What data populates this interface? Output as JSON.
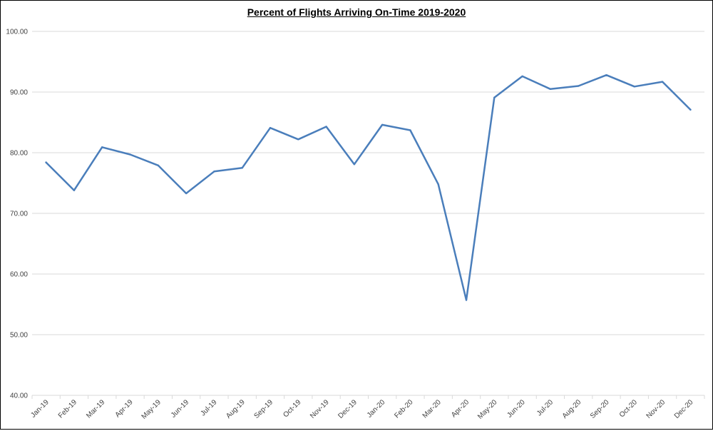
{
  "chart_data": {
    "type": "line",
    "title": "Percent of Flights Arriving On-Time 2019-2020",
    "xlabel": "",
    "ylabel": "",
    "ylim": [
      40,
      100
    ],
    "yticks": [
      "40.00",
      "50.00",
      "60.00",
      "70.00",
      "80.00",
      "90.00",
      "100.00"
    ],
    "grid": true,
    "legend": "none",
    "line_color": "#4A7EBB",
    "categories": [
      "Jan-19",
      "Feb-19",
      "Mar-19",
      "Apr-19",
      "May-19",
      "Jun-19",
      "Jul-19",
      "Aug-19",
      "Sep-19",
      "Oct-19",
      "Nov-19",
      "Dec-19",
      "Jan-20",
      "Feb-20",
      "Mar-20",
      "Apr-20",
      "May-20",
      "Jun-20",
      "Jul-20",
      "Aug-20",
      "Sep-20",
      "Oct-20",
      "Nov-20",
      "Dec-20"
    ],
    "series": [
      {
        "values": [
          78.4,
          73.8,
          80.9,
          79.7,
          77.9,
          73.3,
          76.9,
          77.5,
          84.1,
          82.2,
          84.3,
          78.1,
          84.6,
          83.7,
          74.8,
          55.7,
          89.1,
          92.6,
          90.5,
          91.0,
          92.8,
          90.9,
          91.7,
          87.1
        ]
      }
    ]
  }
}
